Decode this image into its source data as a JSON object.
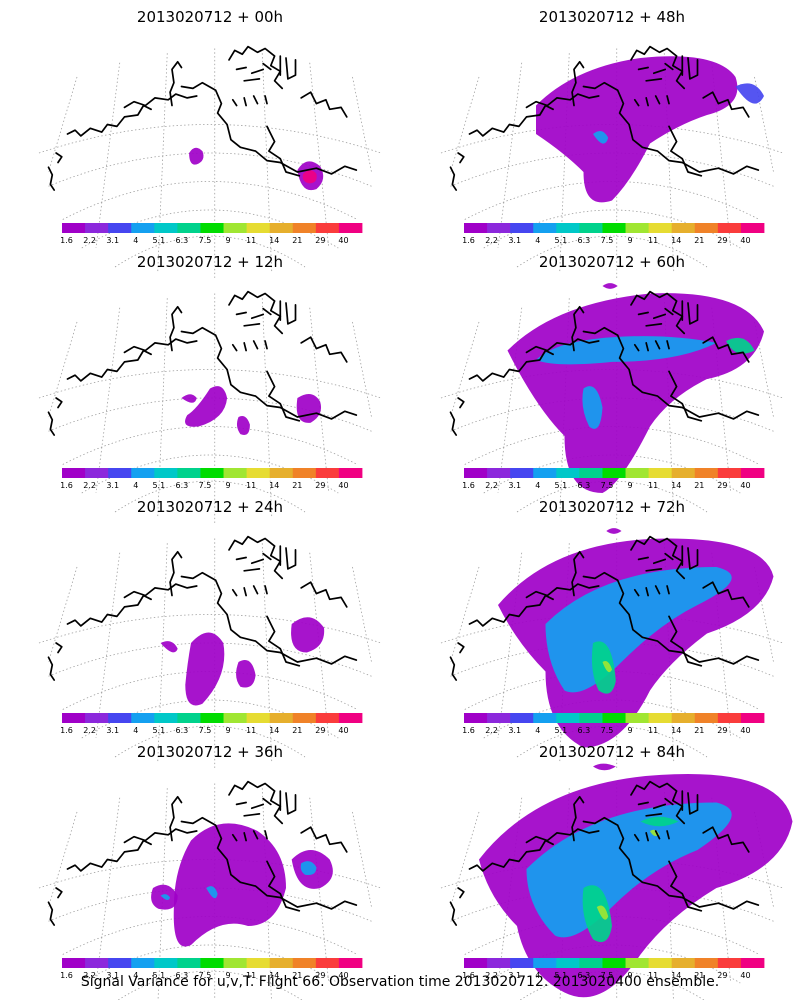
{
  "figure": {
    "caption": "Signal Variance for u,v,T. Flight 66. Observation time 2013020712. 2013020400 ensemble."
  },
  "panels": [
    {
      "title": "2013020712 + 00h",
      "lead_hours": 0
    },
    {
      "title": "2013020712 + 48h",
      "lead_hours": 48
    },
    {
      "title": "2013020712 + 12h",
      "lead_hours": 12
    },
    {
      "title": "2013020712 + 60h",
      "lead_hours": 60
    },
    {
      "title": "2013020712 + 24h",
      "lead_hours": 24
    },
    {
      "title": "2013020712 + 72h",
      "lead_hours": 72
    },
    {
      "title": "2013020712 + 36h",
      "lead_hours": 36
    },
    {
      "title": "2013020712 + 84h",
      "lead_hours": 84
    }
  ],
  "colorbar": {
    "tick_labels": [
      "1.6",
      "2.2",
      "3.1",
      "4",
      "5.1",
      "6.3",
      "7.5",
      "9",
      "11",
      "14",
      "21",
      "29",
      "40"
    ],
    "colors": [
      "#a000c8",
      "#8c28dc",
      "#4646f0",
      "#14a0f0",
      "#00c8c8",
      "#00d28c",
      "#00dc00",
      "#a0e632",
      "#e6dc32",
      "#e6af2d",
      "#f08228",
      "#fa3c3c",
      "#f00082"
    ]
  },
  "colors": {
    "coastline": "#000000",
    "graticule": "#9a9a9a",
    "background": "#ffffff"
  }
}
